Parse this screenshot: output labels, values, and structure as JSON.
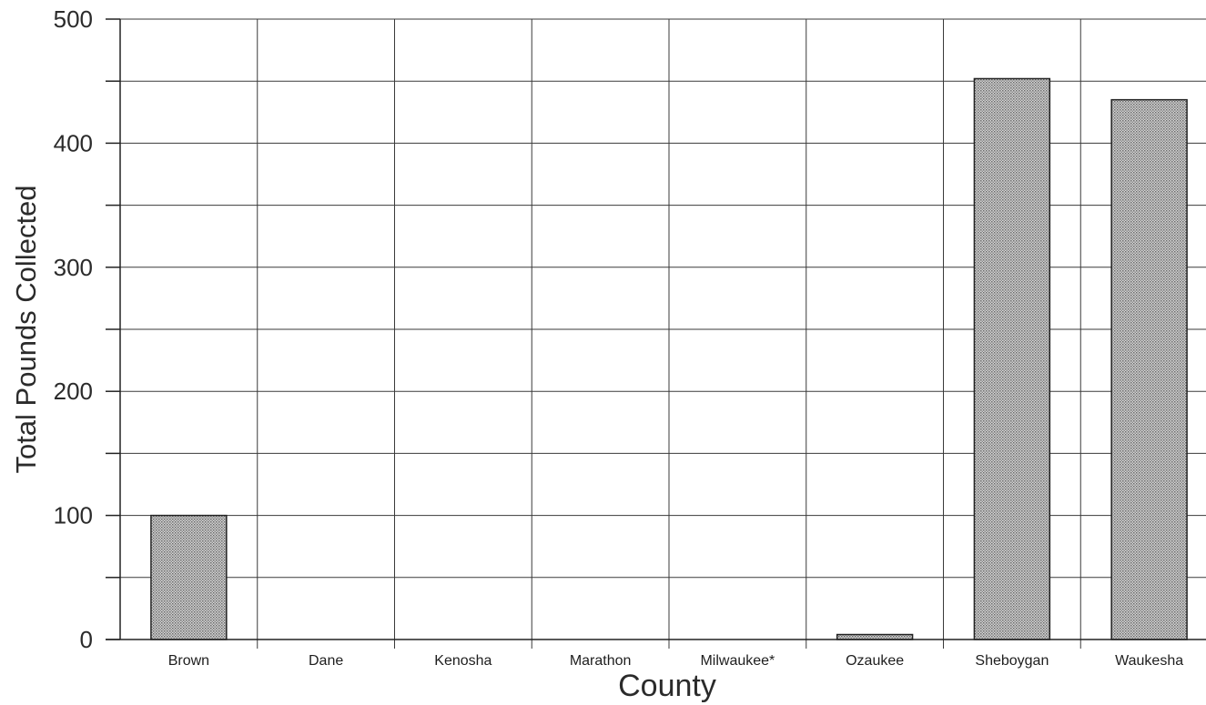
{
  "chart_data": {
    "type": "bar",
    "title": "",
    "xlabel": "County",
    "ylabel": "Total Pounds Collected",
    "categories": [
      "Brown",
      "Dane",
      "Kenosha",
      "Marathon",
      "Milwaukee*",
      "Ozaukee",
      "Sheboygan",
      "Waukesha"
    ],
    "values": [
      100,
      0,
      0,
      0,
      0,
      4,
      452,
      435
    ],
    "ylim": [
      0,
      500
    ],
    "yticks": [
      0,
      100,
      200,
      300,
      400,
      500
    ],
    "ytick_labels": [
      "0",
      "100",
      "200",
      "300",
      "400",
      "500"
    ],
    "grid": true,
    "minor_gridlines": true,
    "legend": "none",
    "bar_fill": "#bdbdbd",
    "bar_pattern": "stipple",
    "bar_edge": "#222222"
  }
}
